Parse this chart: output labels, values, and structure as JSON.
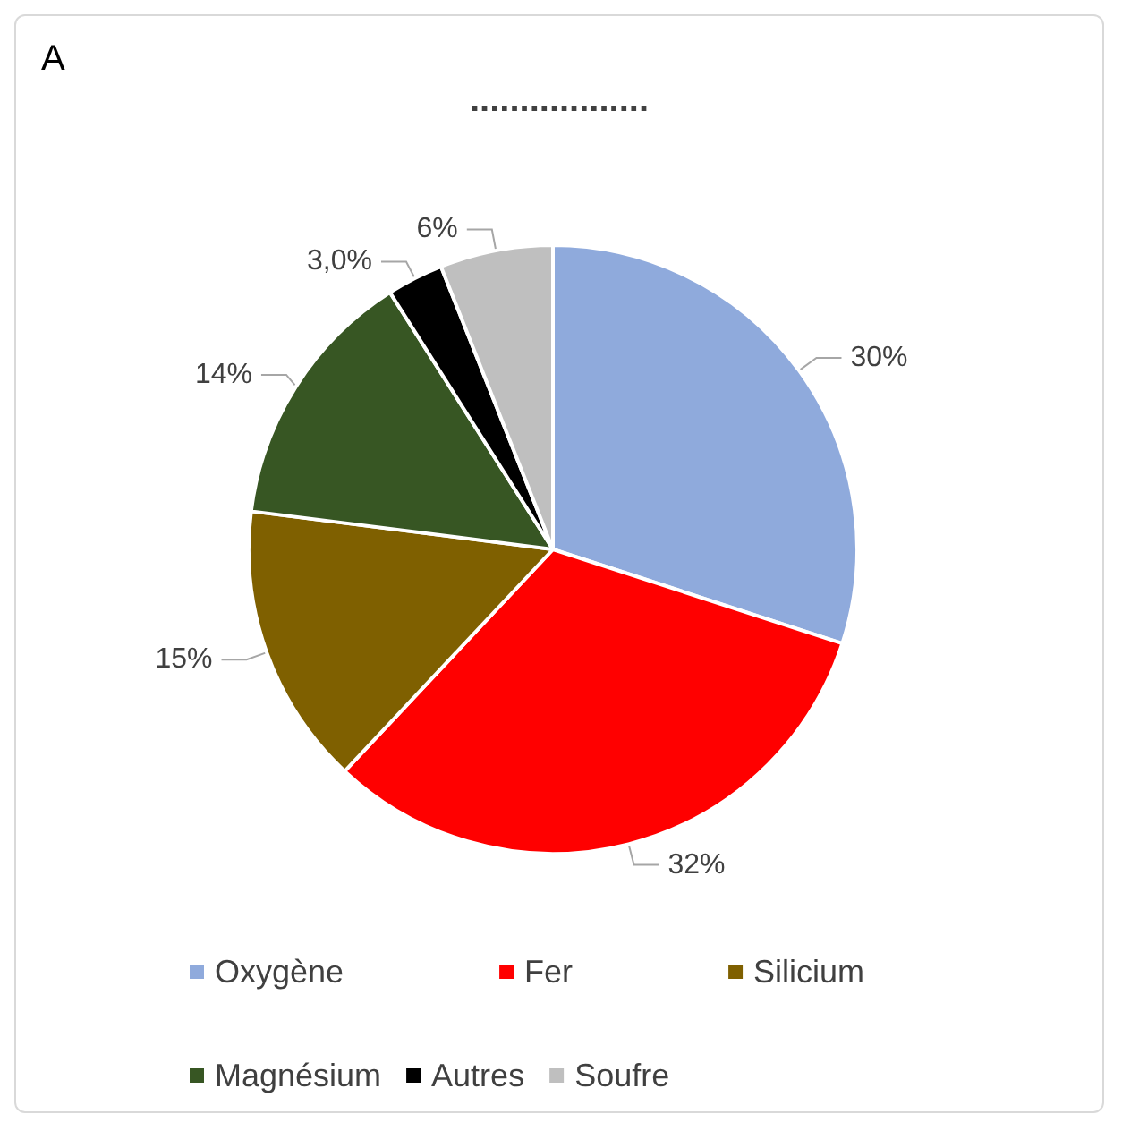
{
  "chart_data": {
    "type": "pie",
    "title": "..................",
    "annotations": [
      "A"
    ],
    "categories": [
      "Oxygène",
      "Fer",
      "Silicium",
      "Magnésium",
      "Autres",
      "Soufre"
    ],
    "values": [
      30,
      32,
      15,
      14,
      3.0,
      6
    ],
    "value_labels": [
      "30%",
      "32%",
      "15%",
      "14%",
      "3,0%",
      "6%"
    ],
    "colors": [
      "#8faadc",
      "#ff0000",
      "#7f6000",
      "#375623",
      "#000000",
      "#bfbfbf"
    ],
    "legend": "bottom"
  }
}
